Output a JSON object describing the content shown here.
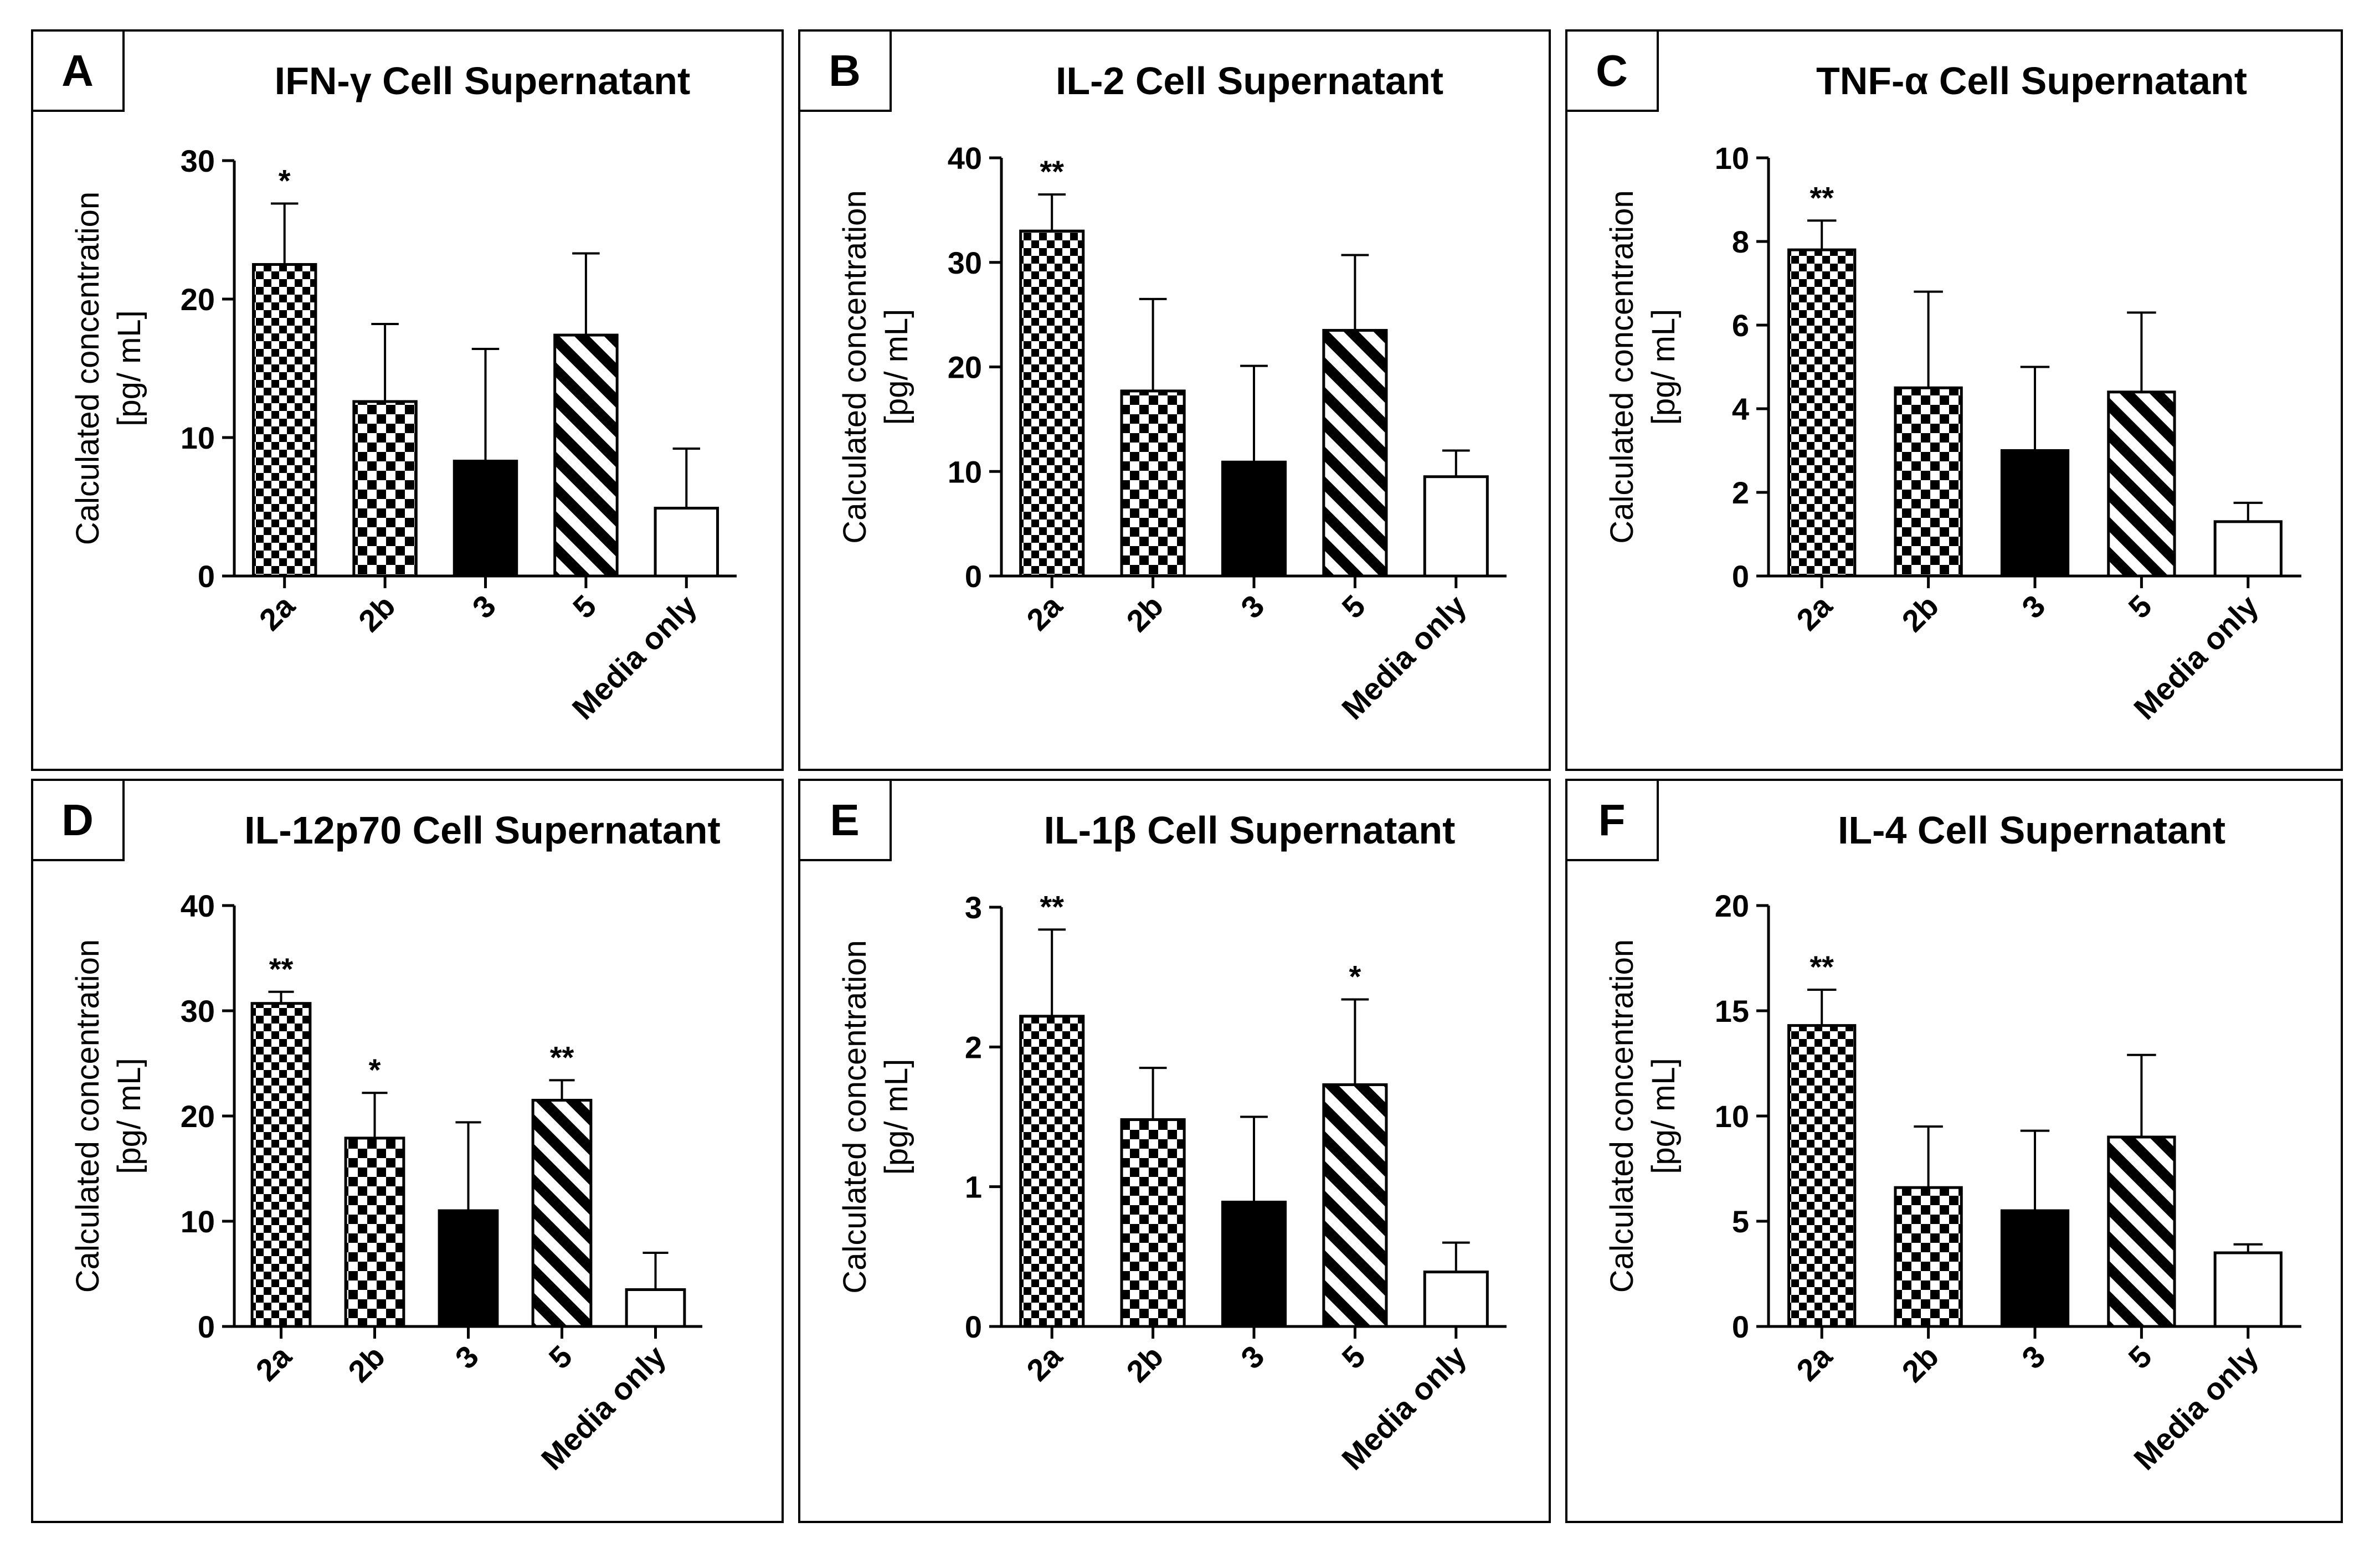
{
  "figure": {
    "categories": [
      "2a",
      "2b",
      "3",
      "5",
      "Media only"
    ],
    "y_axis_label_line1": "Calculated concentration",
    "y_axis_label_line2": "[pg/ mL]",
    "bar_patterns": [
      "checker-fine",
      "checker",
      "solid-black",
      "diagonal-stripes",
      "white"
    ]
  },
  "chart_data": [
    {
      "panel": "A",
      "type": "bar",
      "title": "IFN-γ Cell Supernatant",
      "xlabel": "",
      "ylabel": "Calculated concentration [pg/ mL]",
      "ylim": [
        0,
        30
      ],
      "yticks": [
        0,
        10,
        20,
        30
      ],
      "ytick_labels": [
        "0",
        "10",
        "20",
        "30"
      ],
      "categories": [
        "2a",
        "2b",
        "3",
        "5",
        "Media only"
      ],
      "values": [
        22.5,
        12.6,
        8.3,
        17.4,
        4.9
      ],
      "errors": [
        4.4,
        5.6,
        8.1,
        5.9,
        4.3
      ],
      "significance": [
        "*",
        "",
        "",
        "",
        ""
      ]
    },
    {
      "panel": "B",
      "type": "bar",
      "title": "IL-2 Cell Supernatant",
      "xlabel": "",
      "ylabel": "Calculated concentration [pg/ mL]",
      "ylim": [
        0,
        40
      ],
      "yticks": [
        0,
        10,
        20,
        30,
        40
      ],
      "ytick_labels": [
        "0",
        "10",
        "20",
        "30",
        "40"
      ],
      "categories": [
        "2a",
        "2b",
        "3",
        "5",
        "Media only"
      ],
      "values": [
        33,
        17.7,
        10.9,
        23.5,
        9.5
      ],
      "errors": [
        3.5,
        8.8,
        9.2,
        7.2,
        2.5
      ],
      "significance": [
        "**",
        "",
        "",
        "",
        ""
      ]
    },
    {
      "panel": "C",
      "type": "bar",
      "title": "TNF-α Cell Supernatant",
      "xlabel": "",
      "ylabel": "Calculated concentration [pg/ mL]",
      "ylim": [
        0,
        10
      ],
      "yticks": [
        0,
        2,
        4,
        6,
        8,
        10
      ],
      "ytick_labels": [
        "0",
        "2",
        "4",
        "6",
        "8",
        "10"
      ],
      "categories": [
        "2a",
        "2b",
        "3",
        "5",
        "Media only"
      ],
      "values": [
        7.8,
        4.5,
        3.0,
        4.4,
        1.3
      ],
      "errors": [
        0.7,
        2.3,
        2.0,
        1.9,
        0.45
      ],
      "significance": [
        "**",
        "",
        "",
        "",
        ""
      ]
    },
    {
      "panel": "D",
      "type": "bar",
      "title": "IL-12p70 Cell Supernatant",
      "xlabel": "",
      "ylabel": "Calculated concentration [pg/ mL]",
      "ylim": [
        0,
        40
      ],
      "yticks": [
        0,
        10,
        20,
        30,
        40
      ],
      "ytick_labels": [
        "0",
        "10",
        "20",
        "30",
        "40"
      ],
      "categories": [
        "2a",
        "2b",
        "3",
        "5",
        "Media only"
      ],
      "values": [
        30.7,
        17.9,
        11.0,
        21.5,
        3.5
      ],
      "errors": [
        1.1,
        4.3,
        8.4,
        1.9,
        3.5
      ],
      "significance": [
        "**",
        "*",
        "",
        "**",
        ""
      ]
    },
    {
      "panel": "E",
      "type": "bar",
      "title": "IL-1β Cell Supernatant",
      "xlabel": "",
      "ylabel": "Calculated concentration [pg/ mL]",
      "ylim": [
        0,
        3
      ],
      "yticks": [
        0,
        1,
        2,
        3
      ],
      "ytick_labels": [
        "0",
        "1",
        "2",
        "3"
      ],
      "categories": [
        "2a",
        "2b",
        "3",
        "5",
        "Media only"
      ],
      "values": [
        2.22,
        1.48,
        0.89,
        1.73,
        0.39
      ],
      "errors": [
        0.62,
        0.37,
        0.61,
        0.61,
        0.21
      ],
      "significance": [
        "**",
        "",
        "",
        "*",
        ""
      ]
    },
    {
      "panel": "F",
      "type": "bar",
      "title": "IL-4 Cell Supernatant",
      "xlabel": "",
      "ylabel": "Calculated concentration [pg/ mL]",
      "ylim": [
        0,
        20
      ],
      "yticks": [
        0,
        5,
        10,
        15,
        20
      ],
      "ytick_labels": [
        "0",
        "5",
        "10",
        "15",
        "20"
      ],
      "categories": [
        "2a",
        "2b",
        "3",
        "5",
        "Media only"
      ],
      "values": [
        14.3,
        6.6,
        5.5,
        9.0,
        3.5
      ],
      "errors": [
        1.7,
        2.9,
        3.8,
        3.9,
        0.4
      ],
      "significance": [
        "**",
        "",
        "",
        "",
        ""
      ]
    }
  ]
}
